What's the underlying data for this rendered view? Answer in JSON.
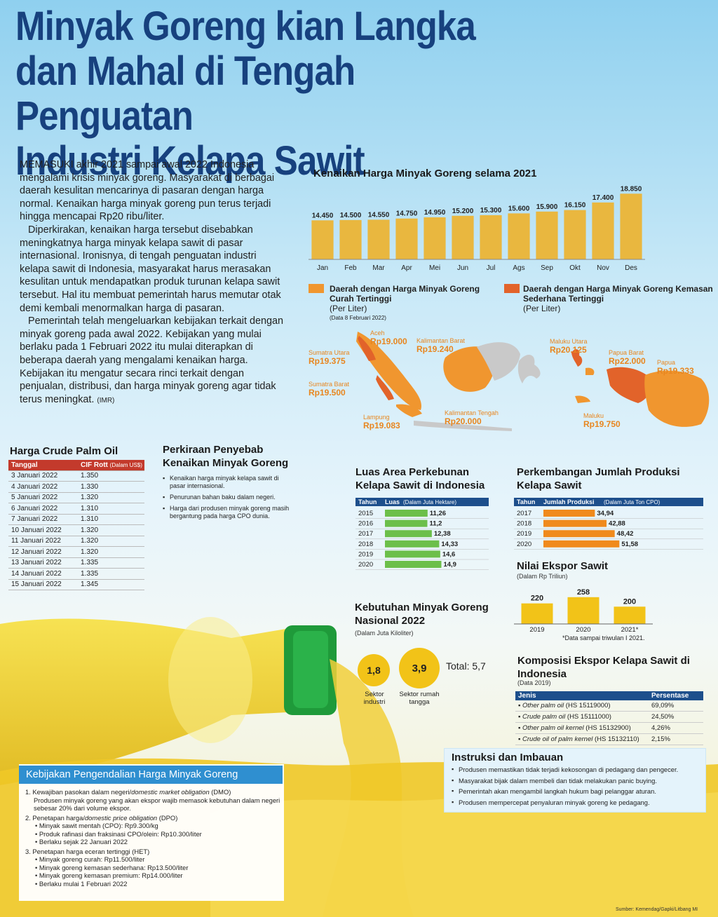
{
  "title_lines": [
    "Minyak Goreng kian Langka",
    "dan Mahal di Tengah Penguatan",
    "Industri Kelapa Sawit"
  ],
  "intro": {
    "p1": "MEMASUKI akhir 2021 sampai awal 2022 Indonesia mengalami krisis minyak goreng. Masyarakat di berbagai daerah kesulitan mencarinya di pasaran dengan harga normal. Kenaikan harga minyak goreng pun terus terjadi hingga mencapai Rp20 ribu/liter.",
    "p2": "Diperkirakan, kenaikan harga tersebut disebabkan meningkatnya harga minyak kelapa sawit di pasar internasional. Ironisnya, di tengah penguatan industri kelapa sawit di Indonesia, masyarakat harus merasakan kesulitan untuk mendapatkan produk turunan kelapa sawit tersebut. Hal itu membuat pemerintah harus memutar otak demi kembali menormalkan harga di pasaran.",
    "p3": "Pemerintah telah mengeluarkan kebijakan terkait dengan minyak goreng pada awal 2022. Kebijakan yang mulai berlaku pada 1 Februari 2022 itu mulai diterapkan di beberapa daerah yang mengalami kenaikan harga. Kebijakan itu mengatur secara rinci terkait dengan penjualan, distribusi, dan harga minyak goreng agar tidak terus meningkat.",
    "sign": "(IMR)"
  },
  "chart_data": [
    {
      "type": "bar",
      "title": "Kenaikan Harga Minyak Goreng selama 2021",
      "categories": [
        "Jan",
        "Feb",
        "Mar",
        "Apr",
        "Mei",
        "Jun",
        "Jul",
        "Ags",
        "Sep",
        "Okt",
        "Nov",
        "Des"
      ],
      "values": [
        14450,
        14500,
        14550,
        14750,
        14950,
        15200,
        15300,
        15600,
        15900,
        16150,
        17400,
        18850
      ],
      "labels": [
        "14.450",
        "14.500",
        "14.550",
        "14.750",
        "14.950",
        "15.200",
        "15.300",
        "15.600",
        "15.900",
        "16.150",
        "17.400",
        "18.850"
      ],
      "color": "#e9b73f"
    },
    {
      "type": "bar",
      "title": "Luas Area Perkebunan Kelapa Sawit di Indonesia",
      "col_year": "Tahun",
      "col_value": "Luas",
      "col_unit": "(Dalam Juta Hektare)",
      "categories": [
        "2015",
        "2016",
        "2017",
        "2018",
        "2019",
        "2020"
      ],
      "values": [
        11.26,
        11.2,
        12.38,
        14.33,
        14.6,
        14.9
      ],
      "labels": [
        "11,26",
        "11,2",
        "12,38",
        "14,33",
        "14,6",
        "14,9"
      ],
      "color": "#6cbf4a"
    },
    {
      "type": "bar",
      "title": "Perkembangan Jumlah Produksi Kelapa Sawit",
      "col_year": "Tahun",
      "col_value": "Jumlah Produksi",
      "col_unit": "(Dalam Juta Ton CPO)",
      "categories": [
        "2017",
        "2018",
        "2019",
        "2020"
      ],
      "values": [
        34.94,
        42.88,
        48.42,
        51.58
      ],
      "labels": [
        "34,94",
        "42,88",
        "48,42",
        "51,58"
      ],
      "color": "#f08a1c"
    },
    {
      "type": "bar",
      "title": "Nilai Ekspor Sawit",
      "subtitle": "(Dalam Rp Triliun)",
      "categories": [
        "2019",
        "2020",
        "2021*"
      ],
      "values": [
        220,
        258,
        200
      ],
      "labels": [
        "220",
        "258",
        "200"
      ],
      "note": "*Data sampai triwulan I 2021.",
      "color": "#f2c318"
    }
  ],
  "map": {
    "legend1": {
      "title": "Daerah dengan Harga Minyak Goreng Curah Tertinggi",
      "sub": "(Per Liter)",
      "date": "(Data 8 Februari 2022)",
      "color": "#f0962f"
    },
    "legend2": {
      "title": "Daerah dengan Harga Minyak Goreng Kemasan Sederhana Tertinggi",
      "sub": "(Per Liter)",
      "color": "#e2632a"
    },
    "regions": [
      {
        "name": "Aceh",
        "value": "Rp19.000"
      },
      {
        "name": "Sumatra Utara",
        "value": "Rp19.375"
      },
      {
        "name": "Sumatra Barat",
        "value": "Rp19.500"
      },
      {
        "name": "Lampung",
        "value": "Rp19.083"
      },
      {
        "name": "Kalimantan Barat",
        "value": "Rp19.240"
      },
      {
        "name": "Kalimantan Tengah",
        "value": "Rp20.000"
      },
      {
        "name": "Maluku Utara",
        "value": "Rp20.125"
      },
      {
        "name": "Papua Barat",
        "value": "Rp22.000"
      },
      {
        "name": "Papua",
        "value": "Rp19.333"
      },
      {
        "name": "Maluku",
        "value": "Rp19.750"
      }
    ]
  },
  "cpo": {
    "title": "Harga Crude Palm Oil",
    "col1": "Tanggal",
    "col2": "CIF Rott",
    "col2_unit": "(Dalam US$)",
    "rows": [
      [
        "3 Januari 2022",
        "1.350"
      ],
      [
        "4 Januari 2022",
        "1.330"
      ],
      [
        "5 Januari 2022",
        "1.320"
      ],
      [
        "6 Januari 2022",
        "1.310"
      ],
      [
        "7 Januari 2022",
        "1.310"
      ],
      [
        "10 Januari 2022",
        "1.320"
      ],
      [
        "11 Januari 2022",
        "1.320"
      ],
      [
        "12 Januari 2022",
        "1.320"
      ],
      [
        "13 Januari 2022",
        "1.335"
      ],
      [
        "14 Januari 2022",
        "1.335"
      ],
      [
        "15 Januari 2022",
        "1.345"
      ]
    ]
  },
  "causes": {
    "title": "Perkiraan Penyebab Kenaikan Minyak Goreng",
    "items": [
      "Kenaikan harga minyak kelapa sawit di pasar internasional.",
      "Penurunan bahan baku dalam negeri.",
      "Harga dari produsen minyak goreng masih bergantung pada harga CPO dunia."
    ]
  },
  "needs": {
    "title": "Kebutuhan Minyak Goreng Nasional 2022",
    "unit": "(Dalam Juta Kiloliter)",
    "industri_value": "1,8",
    "industri_label": "Sektor industri",
    "rumah_value": "3,9",
    "rumah_label": "Sektor rumah tangga",
    "total": "Total: 5,7"
  },
  "komposisi": {
    "title": "Komposisi Ekspor Kelapa Sawit di Indonesia",
    "sub": "(Data 2019)",
    "col1": "Jenis",
    "col2": "Persentase",
    "rows": [
      {
        "name": "Other palm oil",
        "code": "(HS 15119000)",
        "pct": "69,09%"
      },
      {
        "name": "Crude palm oil",
        "code": "(HS 15111000)",
        "pct": "24,50%"
      },
      {
        "name": "Other palm oil kernel",
        "code": "(HS 15132900)",
        "pct": "4,26%"
      },
      {
        "name": "Crude oil of palm kernel",
        "code": "(HS 15132110)",
        "pct": "2,15%"
      }
    ]
  },
  "instruksi": {
    "title": "Instruksi dan Imbauan",
    "items": [
      "Produsen memastikan tidak terjadi kekosongan di pedagang dan pengecer.",
      "Masyarakat bijak dalam membeli dan tidak melakukan panic buying.",
      "Pemerintah akan mengambil langkah hukum bagi pelanggar aturan.",
      "Produsen mempercepat penyaluran minyak goreng ke pedagang."
    ]
  },
  "kebijakan": {
    "title": "Kebijakan Pengendalian Harga Minyak Goreng",
    "i1_a": "1. Kewajiban pasokan dalam negeri/",
    "i1_b": "domestic market obligation",
    "i1_c": " (DMO)",
    "i1_desc": "Produsen minyak goreng yang akan ekspor wajib memasok kebutuhan dalam negeri sebesar 20% dari volume ekspor.",
    "i2_a": "2. Penetapan harga/",
    "i2_b": "domestic price obligation",
    "i2_c": " (DPO)",
    "i2_items": [
      "Minyak sawit mentah (CPO): Rp9.300/kg",
      "Produk rafinasi dan fraksinasi CPO/olein: Rp10.300/liter",
      "Berlaku sejak 22 Januari 2022"
    ],
    "i3": "3. Penetapan harga eceran tertinggi (HET)",
    "i3_items": [
      "Minyak goreng curah: Rp11.500/liter",
      "Minyak goreng kemasan sederhana: Rp13.500/liter",
      "Minyak goreng kemasan premium: Rp14.000/liter",
      "Berlaku mulai 1 Februari 2022"
    ]
  },
  "source": "Sumber: Kemendag/Gapki/Litbang MI"
}
